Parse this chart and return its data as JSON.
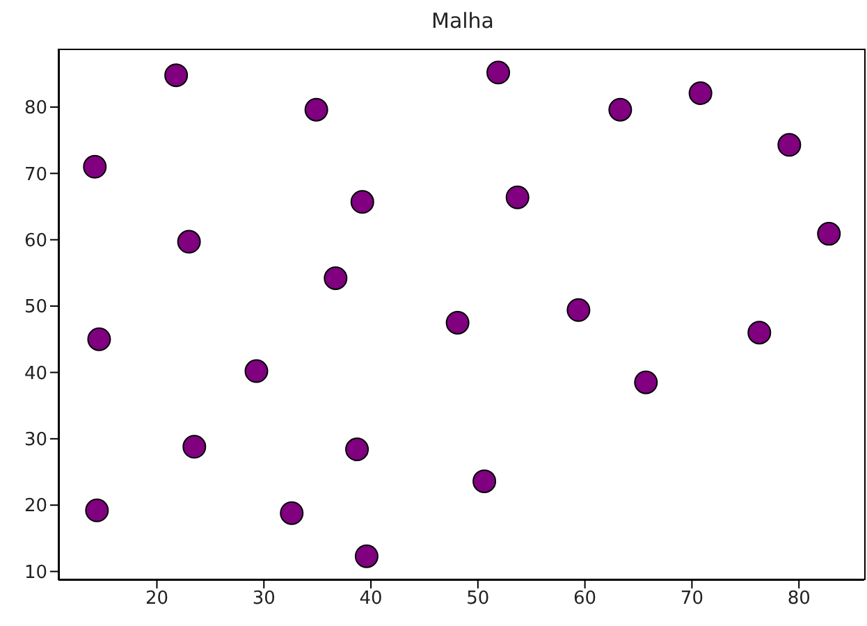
{
  "chart_data": {
    "type": "scatter",
    "title": "Malha",
    "color": "#800080",
    "marker": "circle",
    "x": [
      21.8,
      34.9,
      51.9,
      63.3,
      70.8,
      79.1,
      14.2,
      39.2,
      53.7,
      82.8,
      23.0,
      36.7,
      14.6,
      48.1,
      59.4,
      76.3,
      29.3,
      65.7,
      23.5,
      38.7,
      50.6,
      14.4,
      32.6,
      39.6
    ],
    "values": [
      84.8,
      79.6,
      85.2,
      79.6,
      82.1,
      74.3,
      71.0,
      65.7,
      66.4,
      60.9,
      59.7,
      54.2,
      45.0,
      47.5,
      49.4,
      46.0,
      40.2,
      38.5,
      28.8,
      28.4,
      23.6,
      19.2,
      18.8,
      12.3
    ],
    "xlim": [
      10.8,
      86.1
    ],
    "xticks": [
      20,
      30,
      40,
      50,
      60,
      70,
      80
    ],
    "ylim": [
      8.7,
      88.8
    ],
    "yticks": [
      10,
      20,
      30,
      40,
      50,
      60,
      70,
      80
    ],
    "grid": false
  }
}
